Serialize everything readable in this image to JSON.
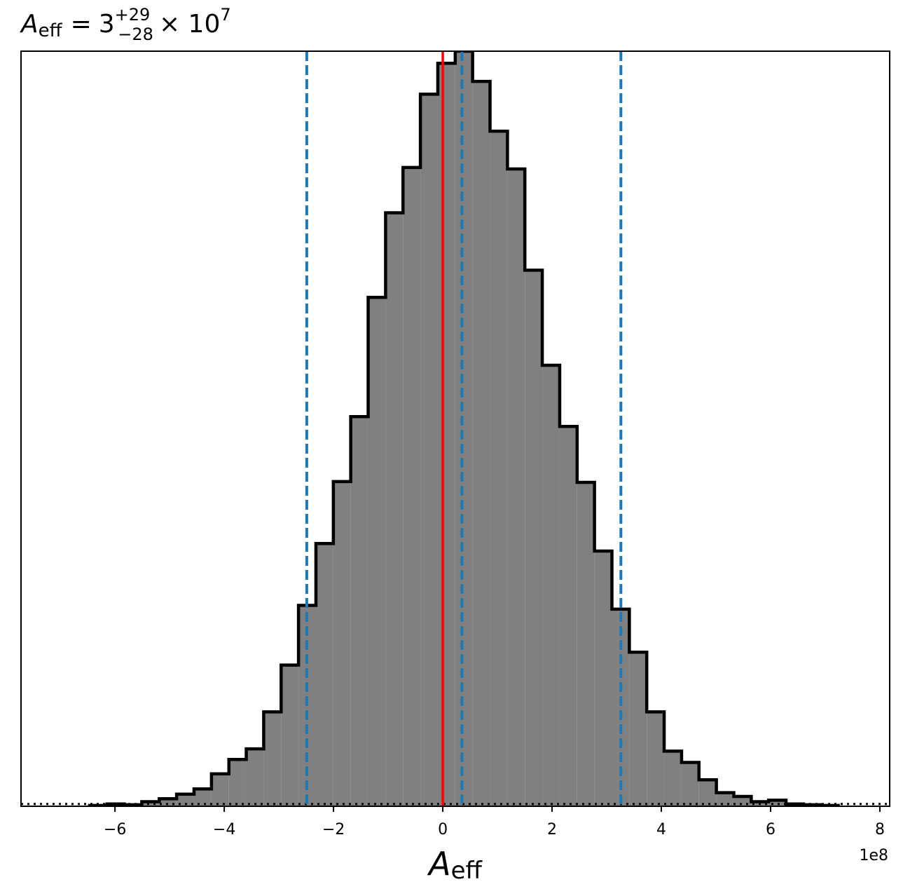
{
  "chart_data": {
    "type": "histogram",
    "title": {
      "symbol": "A",
      "subscript": "eff",
      "equals": "=",
      "value": "3",
      "upper": "+29",
      "lower": "−28",
      "times": "× 10",
      "exponent": "7"
    },
    "x_label": {
      "symbol": "A",
      "subscript": "eff"
    },
    "x_offset_label": "1e8",
    "bins": [
      -6.465,
      -6.146,
      -5.828,
      -5.509,
      -5.19,
      -4.872,
      -4.553,
      -4.234,
      -3.915,
      -3.597,
      -3.278,
      -2.959,
      -2.641,
      -2.322,
      -2.003,
      -1.685,
      -1.366,
      -1.047,
      -0.728,
      -0.41,
      -0.091,
      0.228,
      0.546,
      0.865,
      1.184,
      1.502,
      1.821,
      2.14,
      2.459,
      2.777,
      3.096,
      3.415,
      3.733,
      4.052,
      4.371,
      4.689,
      5.008,
      5.327,
      5.646,
      5.964,
      6.283,
      6.602,
      6.92,
      7.239
    ],
    "values": [
      0.1,
      0.3,
      0.2,
      0.6,
      1.0,
      1.6,
      2.3,
      4.3,
      6.2,
      7.6,
      12.5,
      18.7,
      26.6,
      34.8,
      43.0,
      51.6,
      67.4,
      78.6,
      84.6,
      94.3,
      98.4,
      100,
      96.0,
      89.4,
      84.4,
      71.0,
      58.4,
      50.3,
      42.9,
      33.8,
      26.1,
      20.4,
      12.5,
      7.3,
      5.8,
      3.5,
      1.8,
      1.3,
      0.6,
      0.8,
      0.3,
      0.2,
      0.1
    ],
    "color": "#808080",
    "edge_color": "#000000",
    "xlim": [
      -7.72,
      8.18
    ],
    "ylim": [
      0,
      100
    ],
    "xticks": [
      {
        "value": -6,
        "label": "−6"
      },
      {
        "value": -4,
        "label": "−4"
      },
      {
        "value": -2,
        "label": "−2"
      },
      0,
      2,
      4,
      6,
      8
    ],
    "truth_line": {
      "value": 0,
      "color": "#ff0000"
    },
    "quantile_lines": {
      "values": [
        -2.49,
        0.35,
        3.26
      ],
      "color": "#1f77b4"
    },
    "hline": {
      "value": 0.3,
      "color": "#000000"
    }
  }
}
